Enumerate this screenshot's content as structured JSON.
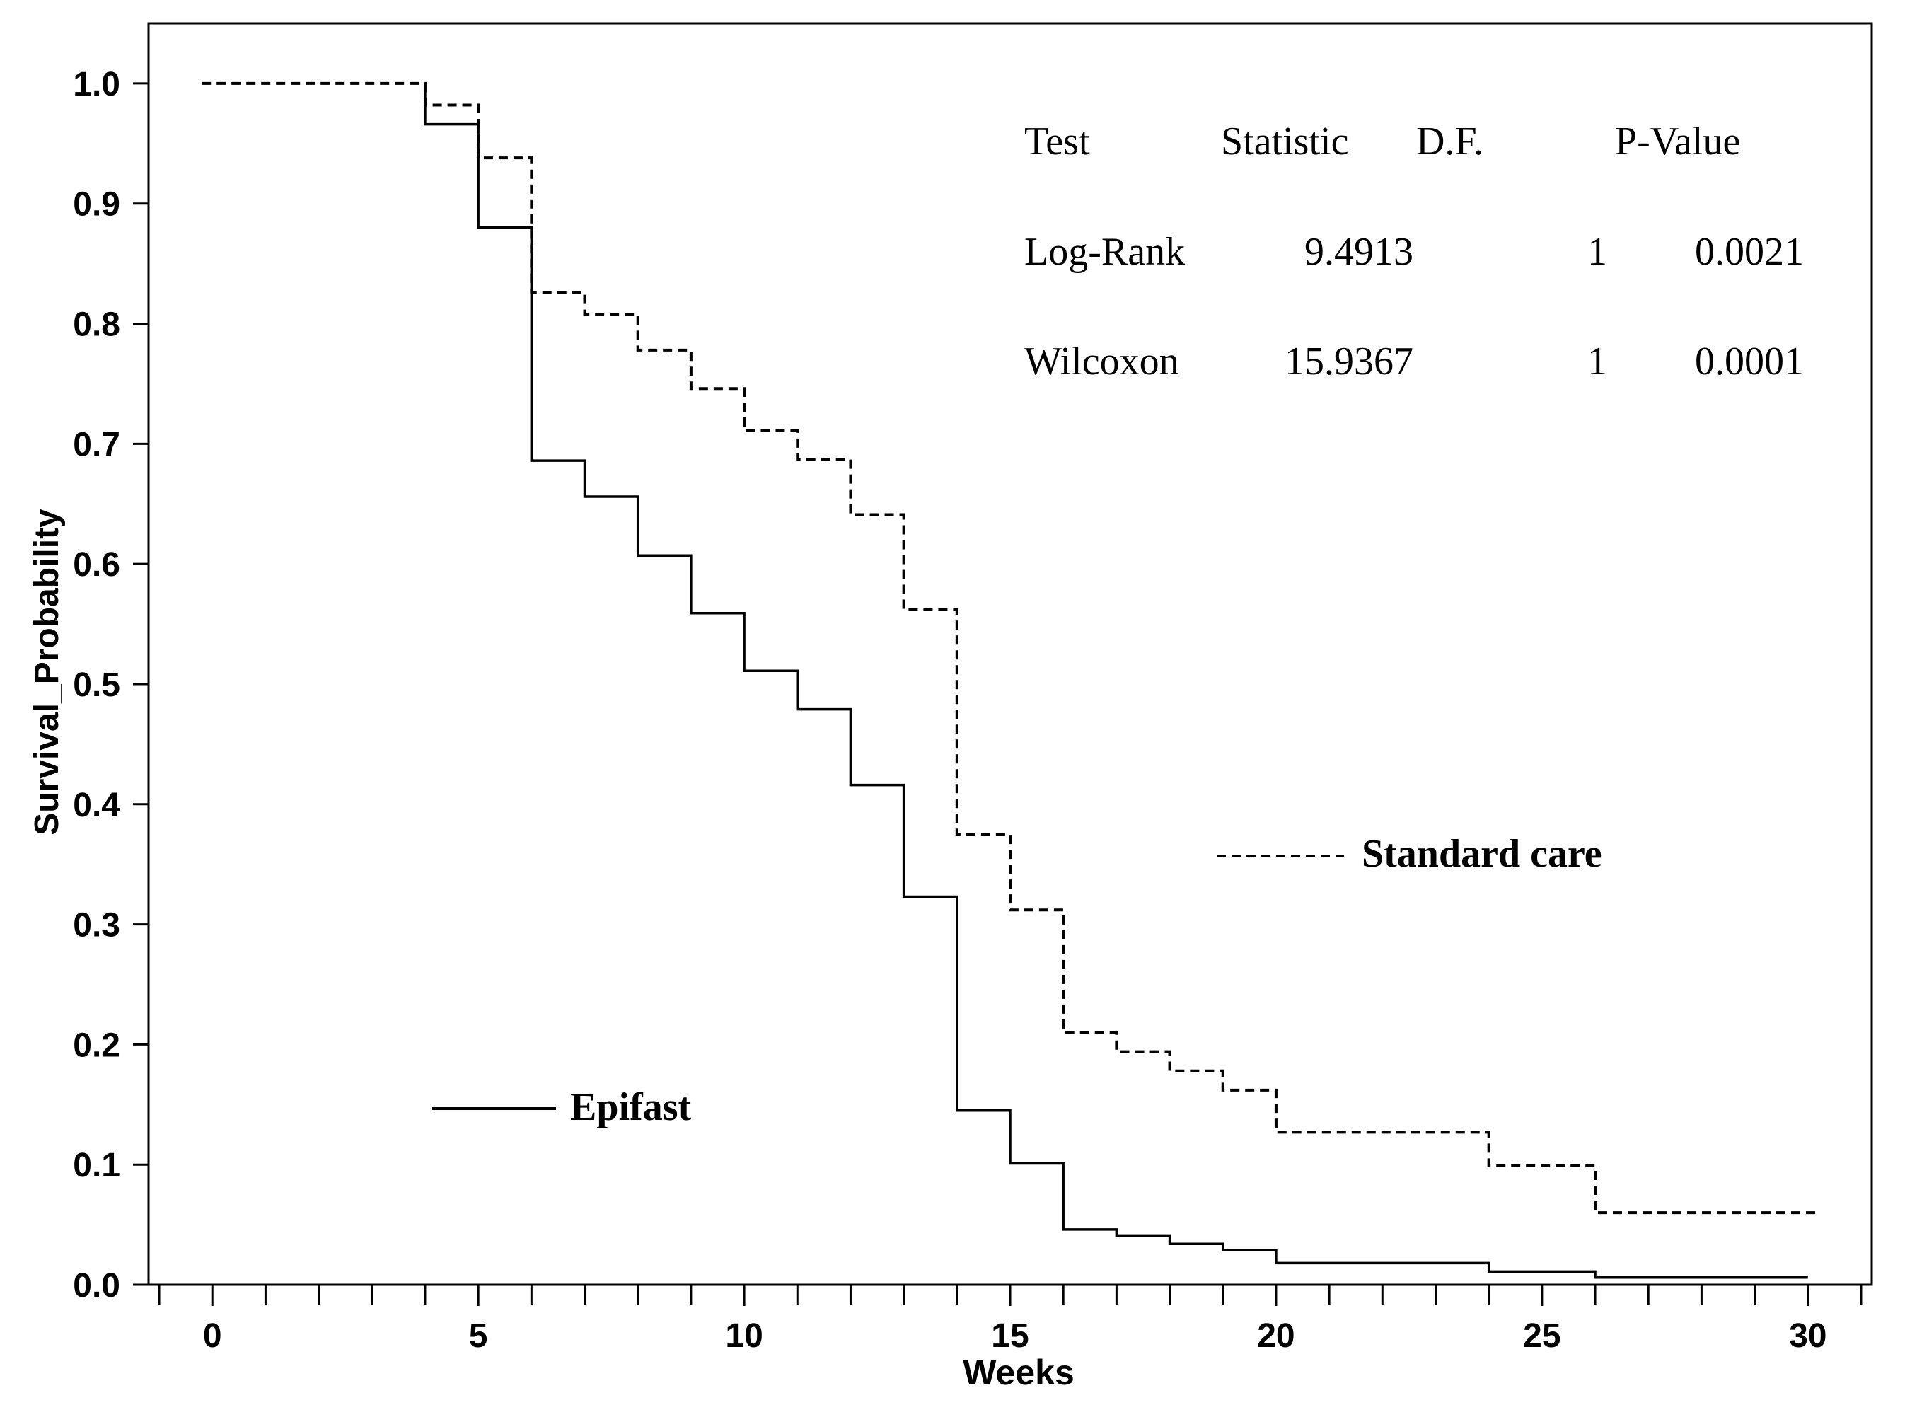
{
  "chart_data": {
    "type": "line",
    "subtype": "kaplan-meier step",
    "title": "",
    "xlabel": "Weeks",
    "ylabel": "Survival_Probability",
    "xlim": [
      -1.2,
      31.2
    ],
    "ylim": [
      0.0,
      1.05
    ],
    "x_ticks": [
      0,
      5,
      10,
      15,
      20,
      25,
      30
    ],
    "x_tick_labels": [
      "0",
      "5",
      "10",
      "15",
      "20",
      "25",
      "30"
    ],
    "y_ticks": [
      0.0,
      0.1,
      0.2,
      0.3,
      0.4,
      0.5,
      0.6,
      0.7,
      0.8,
      0.9,
      1.0
    ],
    "y_tick_labels": [
      "0.0",
      "0.1",
      "0.2",
      "0.3",
      "0.4",
      "0.5",
      "0.6",
      "0.7",
      "0.8",
      "0.9",
      "1.0"
    ],
    "grid": false,
    "series": [
      {
        "name": "Standard care",
        "line_style": "dashed",
        "color": "#000000",
        "x": [
          -0.2,
          4,
          5,
          6,
          7,
          8,
          9,
          10,
          11,
          12,
          13,
          14,
          15,
          16,
          17,
          18,
          19,
          20,
          24,
          26,
          30.2
        ],
        "y": [
          1.0,
          0.982,
          0.938,
          0.826,
          0.808,
          0.778,
          0.746,
          0.711,
          0.687,
          0.641,
          0.562,
          0.375,
          0.312,
          0.21,
          0.194,
          0.178,
          0.162,
          0.127,
          0.099,
          0.06,
          0.06
        ]
      },
      {
        "name": "Epifast",
        "line_style": "solid",
        "color": "#000000",
        "x": [
          4,
          5,
          6,
          7,
          8,
          9,
          10,
          11,
          12,
          13,
          14,
          15,
          16,
          17,
          18,
          19,
          20,
          24,
          26,
          30
        ],
        "y": [
          0.966,
          0.88,
          0.686,
          0.656,
          0.607,
          0.559,
          0.511,
          0.479,
          0.416,
          0.323,
          0.145,
          0.101,
          0.046,
          0.041,
          0.034,
          0.029,
          0.018,
          0.011,
          0.006,
          0.006
        ]
      }
    ],
    "legend": [
      {
        "label": "Standard care",
        "line_style": "dashed",
        "placement": "center-right"
      },
      {
        "label": "Epifast",
        "line_style": "solid",
        "placement": "bottom-left"
      }
    ],
    "stats_table": {
      "headers": [
        "Test",
        "Statistic",
        "D.F.",
        "P-Value"
      ],
      "rows": [
        [
          "Log-Rank",
          "9.4913",
          "1",
          "0.0021"
        ],
        [
          "Wilcoxon",
          "15.9367",
          "1",
          "0.0001"
        ]
      ]
    }
  }
}
